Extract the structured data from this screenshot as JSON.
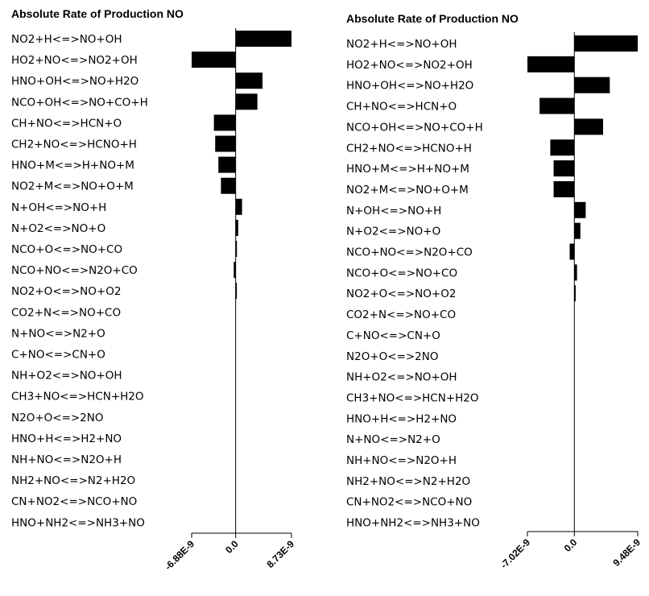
{
  "chart_data": [
    {
      "type": "bar",
      "orientation": "horizontal",
      "title": "Absolute Rate of Production NO",
      "xlim": [
        -6.88e-09,
        8.73e-09
      ],
      "tick_labels": [
        "-6.88E-9",
        "0.0",
        "8.73E-9"
      ],
      "categories": [
        "NO2+H<=>NO+OH",
        "HO2+NO<=>NO2+OH",
        "HNO+OH<=>NO+H2O",
        "NCO+OH<=>NO+CO+H",
        "CH+NO<=>HCN+O",
        "CH2+NO<=>HCNO+H",
        "HNO+M<=>H+NO+M",
        "NO2+M<=>NO+O+M",
        "N+OH<=>NO+H",
        "N+O2<=>NO+O",
        "NCO+O<=>NO+CO",
        "NCO+NO<=>N2O+CO",
        "NO2+O<=>NO+O2",
        "CO2+N<=>NO+CO",
        "N+NO<=>N2+O",
        "C+NO<=>CN+O",
        "NH+O2<=>NO+OH",
        "CH3+NO<=>HCN+H2O",
        "N2O+O<=>2NO",
        "HNO+H<=>H2+NO",
        "NH+NO<=>N2O+H",
        "NH2+NO<=>N2+H2O",
        "CN+NO2<=>NCO+NO",
        "HNO+NH2<=>NH3+NO"
      ],
      "values": [
        8.73e-09,
        -6.88e-09,
        4.2e-09,
        3.4e-09,
        -3.4e-09,
        -3.2e-09,
        -2.7e-09,
        -2.3e-09,
        1e-09,
        4e-10,
        2e-10,
        -3e-10,
        1.5e-10,
        0,
        0,
        0,
        0,
        0,
        0,
        0,
        0,
        0,
        0,
        0
      ]
    },
    {
      "type": "bar",
      "orientation": "horizontal",
      "title": "Absolute Rate of Production NO",
      "xlim": [
        -7.02e-09,
        9.48e-09
      ],
      "tick_labels": [
        "-7.02E-9",
        "0.0",
        "9.48E-9"
      ],
      "categories": [
        "NO2+H<=>NO+OH",
        "HO2+NO<=>NO2+OH",
        "HNO+OH<=>NO+H2O",
        "CH+NO<=>HCN+O",
        "NCO+OH<=>NO+CO+H",
        "CH2+NO<=>HCNO+H",
        "HNO+M<=>H+NO+M",
        "NO2+M<=>NO+O+M",
        "N+OH<=>NO+H",
        "N+O2<=>NO+O",
        "NCO+NO<=>N2O+CO",
        "NCO+O<=>NO+CO",
        "NO2+O<=>NO+O2",
        "CO2+N<=>NO+CO",
        "C+NO<=>CN+O",
        "N2O+O<=>2NO",
        "NH+O2<=>NO+OH",
        "CH3+NO<=>HCN+H2O",
        "HNO+H<=>H2+NO",
        "N+NO<=>N2+O",
        "NH+NO<=>N2O+H",
        "NH2+NO<=>N2+H2O",
        "CN+NO2<=>NCO+NO",
        "HNO+NH2<=>NH3+NO"
      ],
      "values": [
        9.48e-09,
        -7.02e-09,
        5.3e-09,
        -5.2e-09,
        4.3e-09,
        -3.6e-09,
        -3.1e-09,
        -3.1e-09,
        1.7e-09,
        9e-10,
        -7e-10,
        4e-10,
        2e-10,
        0,
        0,
        0,
        0,
        0,
        0,
        0,
        0,
        0,
        0,
        0
      ]
    }
  ]
}
